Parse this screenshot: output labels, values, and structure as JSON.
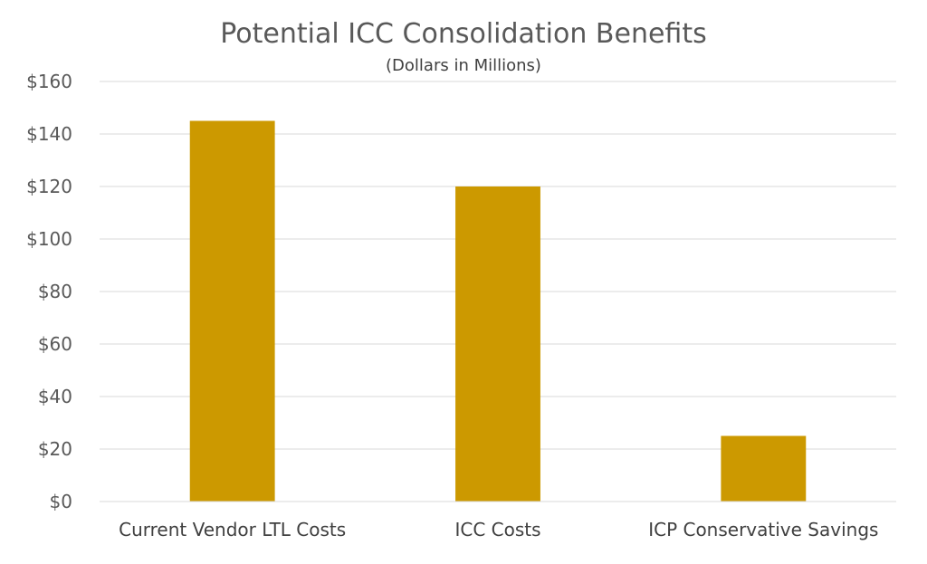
{
  "chart_data": {
    "type": "bar",
    "title": "Potential ICC Consolidation Benefits",
    "subtitle": "(Dollars in Millions)",
    "categories": [
      "Current Vendor LTL Costs",
      "ICC Costs",
      "ICP Conservative Savings"
    ],
    "values": [
      145,
      120,
      25
    ],
    "ylim": [
      0,
      160
    ],
    "yticks": [
      0,
      20,
      40,
      60,
      80,
      100,
      120,
      140,
      160
    ],
    "ytick_labels": [
      "$0",
      "$20",
      "$40",
      "$60",
      "$80",
      "$100",
      "$120",
      "$140",
      "$160"
    ],
    "xlabel": "",
    "ylabel": "",
    "grid": true,
    "legend": "none",
    "bar_color": "#CC9900",
    "grid_color": "#D9D9D9"
  }
}
